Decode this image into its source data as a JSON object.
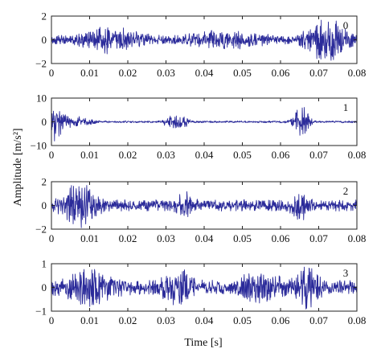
{
  "figure": {
    "ylabel": "Amplitude [m/s²]",
    "xlabel": "Time [s]",
    "line_color": "#2b2b9a"
  },
  "chart_data": [
    {
      "type": "line",
      "panel_label": "0",
      "x": [
        0,
        0.01,
        0.02,
        0.03,
        0.04,
        0.05,
        0.06,
        0.07,
        0.08
      ],
      "x_tick_labels": [
        "0",
        "0.01",
        "0.02",
        "0.03",
        "0.04",
        "0.05",
        "0.06",
        "0.07",
        "0.08"
      ],
      "xlim": [
        0,
        0.08
      ],
      "ylim": [
        -2,
        2
      ],
      "y_ticks": [
        2,
        0,
        -2
      ],
      "y_tick_labels": [
        "2",
        "0",
        "−2"
      ],
      "bursts": [
        {
          "t": 0.015,
          "amp": 0.8,
          "width": 0.008
        },
        {
          "t": 0.045,
          "amp": 0.5,
          "width": 0.01
        },
        {
          "t": 0.072,
          "amp": 1.6,
          "width": 0.005
        }
      ],
      "base_amp": 0.3,
      "seed": 11
    },
    {
      "type": "line",
      "panel_label": "1",
      "x": [
        0,
        0.01,
        0.02,
        0.03,
        0.04,
        0.05,
        0.06,
        0.07,
        0.08
      ],
      "x_tick_labels": [
        "0",
        "0.01",
        "0.02",
        "0.03",
        "0.04",
        "0.05",
        "0.06",
        "0.07",
        "0.08"
      ],
      "xlim": [
        0,
        0.08
      ],
      "ylim": [
        -10,
        10
      ],
      "y_ticks": [
        10,
        0,
        -10
      ],
      "y_tick_labels": [
        "10",
        "0",
        "−10"
      ],
      "bursts": [
        {
          "t": 0.001,
          "amp": 7,
          "width": 0.002
        },
        {
          "t": 0.006,
          "amp": 2,
          "width": 0.004
        },
        {
          "t": 0.0315,
          "amp": 2.5,
          "width": 0.002
        },
        {
          "t": 0.0345,
          "amp": 2,
          "width": 0.0015
        },
        {
          "t": 0.0655,
          "amp": 6,
          "width": 0.002
        }
      ],
      "base_amp": 0.4,
      "seed": 23
    },
    {
      "type": "line",
      "panel_label": "2",
      "x": [
        0,
        0.01,
        0.02,
        0.03,
        0.04,
        0.05,
        0.06,
        0.07,
        0.08
      ],
      "x_tick_labels": [
        "0",
        "0.01",
        "0.02",
        "0.03",
        "0.04",
        "0.05",
        "0.06",
        "0.07",
        "0.08"
      ],
      "xlim": [
        0,
        0.08
      ],
      "ylim": [
        -2,
        2
      ],
      "y_ticks": [
        2,
        0,
        -2
      ],
      "y_tick_labels": [
        "2",
        "0",
        "−2"
      ],
      "bursts": [
        {
          "t": 0.0075,
          "amp": 1.7,
          "width": 0.004
        },
        {
          "t": 0.035,
          "amp": 0.8,
          "width": 0.002
        },
        {
          "t": 0.065,
          "amp": 0.9,
          "width": 0.002
        }
      ],
      "base_amp": 0.45,
      "seed": 37
    },
    {
      "type": "line",
      "panel_label": "3",
      "x": [
        0,
        0.01,
        0.02,
        0.03,
        0.04,
        0.05,
        0.06,
        0.07,
        0.08
      ],
      "x_tick_labels": [
        "0",
        "0.01",
        "0.02",
        "0.03",
        "0.04",
        "0.05",
        "0.06",
        "0.07",
        "0.08"
      ],
      "xlim": [
        0,
        0.08
      ],
      "ylim": [
        -1,
        1
      ],
      "y_ticks": [
        1,
        0,
        -1
      ],
      "y_tick_labels": [
        "1",
        "0",
        "−1"
      ],
      "bursts": [
        {
          "t": 0.01,
          "amp": 0.5,
          "width": 0.006
        },
        {
          "t": 0.033,
          "amp": 0.55,
          "width": 0.004
        },
        {
          "t": 0.055,
          "amp": 0.4,
          "width": 0.006
        },
        {
          "t": 0.067,
          "amp": 0.6,
          "width": 0.003
        }
      ],
      "base_amp": 0.28,
      "seed": 53
    }
  ]
}
